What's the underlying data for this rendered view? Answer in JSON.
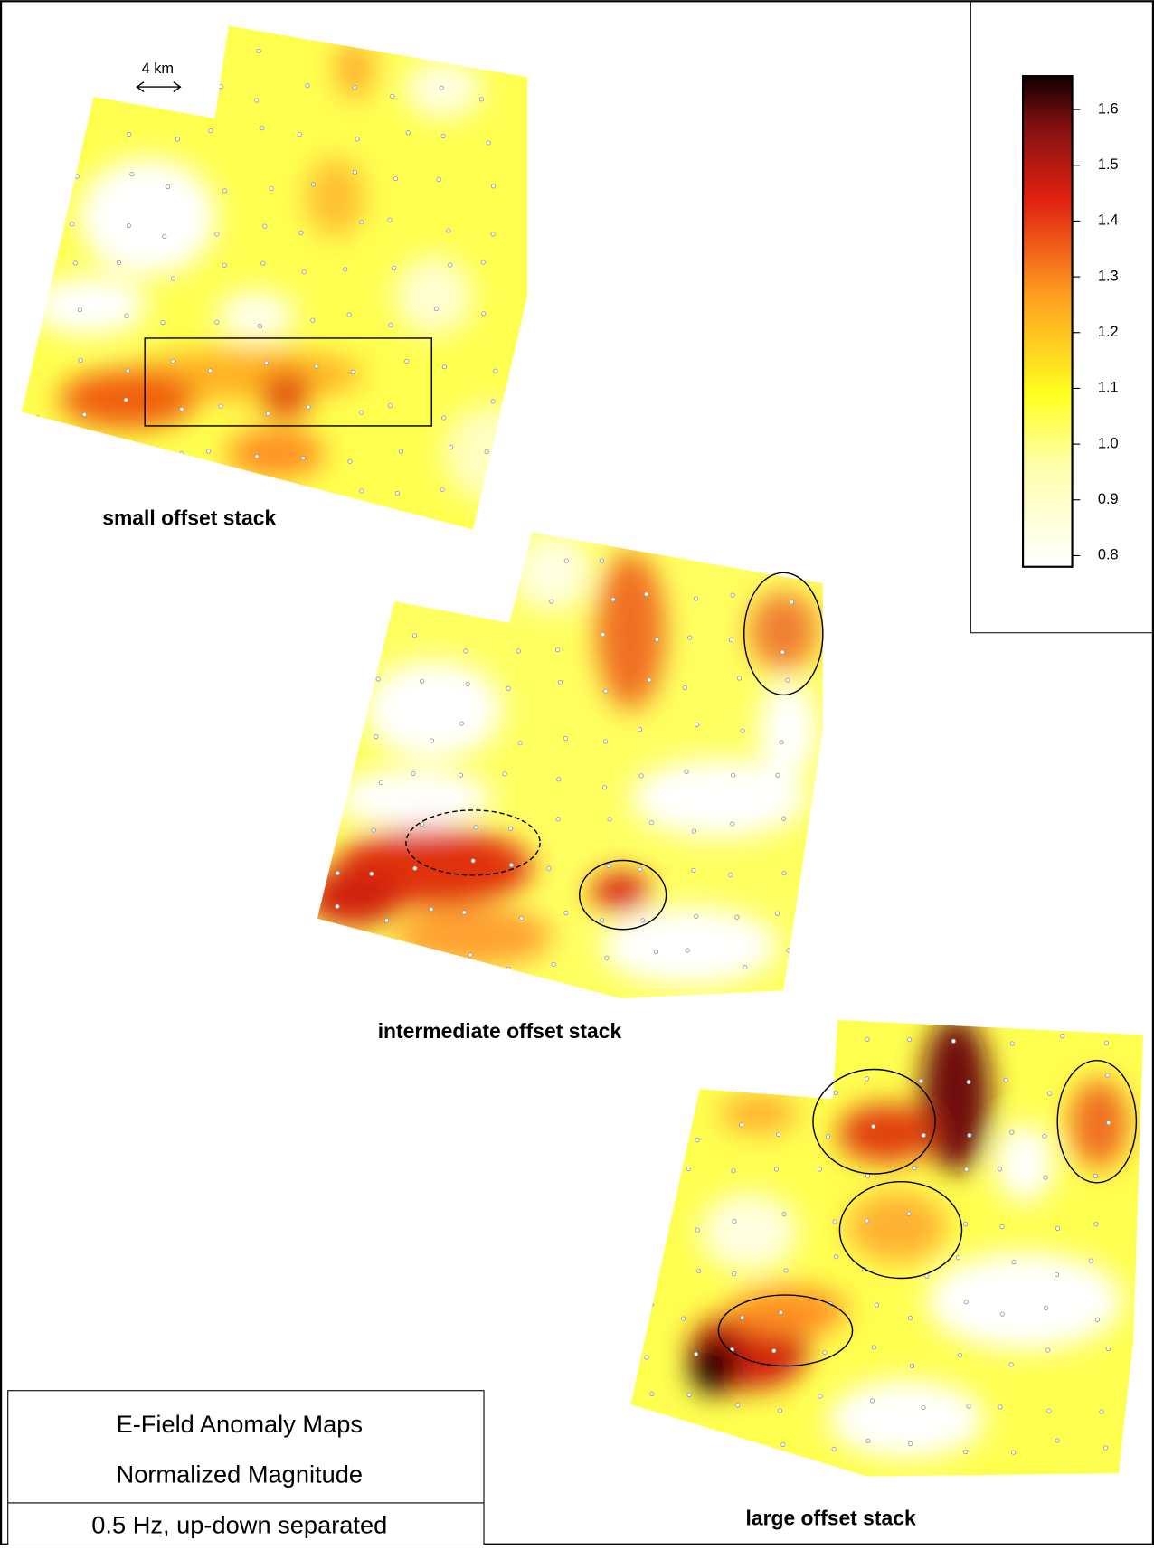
{
  "maps": [
    {
      "label": "small offset stack"
    },
    {
      "label": "intermediate offset stack"
    },
    {
      "label": "large offset stack"
    }
  ],
  "scale_bar": "4 km",
  "colorbar": {
    "ylim": [
      0.78,
      1.66
    ],
    "yticks": [
      0.8,
      0.9,
      {
        "value": 1,
        "label": "1.0"
      },
      1.1,
      1.2,
      1.3,
      1.4,
      1.5,
      1.6
    ]
  },
  "legend": {
    "title": "E-Field Anomaly Maps",
    "subtitle": "Normalized Magnitude",
    "note": "0.5 Hz, up-down separated"
  }
}
